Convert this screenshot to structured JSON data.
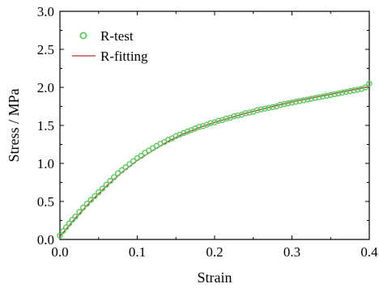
{
  "chart_data": {
    "type": "scatter",
    "xlabel": "Strain",
    "ylabel": "Stress / MPa",
    "xlim": [
      0.0,
      0.4
    ],
    "ylim": [
      0.0,
      3.0
    ],
    "x_ticks": [
      "0.0",
      "0.1",
      "0.2",
      "0.3",
      "0.4"
    ],
    "y_ticks": [
      "0.0",
      "0.5",
      "1.0",
      "1.5",
      "2.0",
      "2.5",
      "3.0"
    ],
    "x_tick_values": [
      0.0,
      0.1,
      0.2,
      0.3,
      0.4
    ],
    "y_tick_values": [
      0.0,
      0.5,
      1.0,
      1.5,
      2.0,
      2.5,
      3.0
    ],
    "legend_position": "top-left",
    "grid": false,
    "series": [
      {
        "name": "R-test",
        "kind": "markers",
        "color": "#5cc95c",
        "x": [
          0.0,
          0.004,
          0.008,
          0.012,
          0.016,
          0.02,
          0.025,
          0.03,
          0.035,
          0.04,
          0.045,
          0.05,
          0.055,
          0.06,
          0.065,
          0.07,
          0.075,
          0.08,
          0.085,
          0.09,
          0.095,
          0.1,
          0.105,
          0.11,
          0.115,
          0.12,
          0.125,
          0.13,
          0.135,
          0.14,
          0.145,
          0.15,
          0.155,
          0.16,
          0.165,
          0.17,
          0.175,
          0.18,
          0.185,
          0.19,
          0.195,
          0.2,
          0.205,
          0.21,
          0.215,
          0.22,
          0.225,
          0.23,
          0.235,
          0.24,
          0.245,
          0.25,
          0.255,
          0.26,
          0.265,
          0.27,
          0.275,
          0.28,
          0.285,
          0.29,
          0.295,
          0.3,
          0.305,
          0.31,
          0.315,
          0.32,
          0.325,
          0.33,
          0.335,
          0.34,
          0.345,
          0.35,
          0.355,
          0.36,
          0.365,
          0.37,
          0.375,
          0.38,
          0.385,
          0.39,
          0.395,
          0.4
        ],
        "y": [
          0.05,
          0.11,
          0.16,
          0.21,
          0.26,
          0.3,
          0.36,
          0.42,
          0.47,
          0.52,
          0.57,
          0.62,
          0.67,
          0.72,
          0.77,
          0.82,
          0.87,
          0.91,
          0.95,
          0.99,
          1.03,
          1.07,
          1.1,
          1.14,
          1.17,
          1.2,
          1.23,
          1.26,
          1.28,
          1.31,
          1.33,
          1.36,
          1.38,
          1.4,
          1.42,
          1.44,
          1.46,
          1.48,
          1.49,
          1.51,
          1.53,
          1.54,
          1.56,
          1.57,
          1.59,
          1.6,
          1.62,
          1.63,
          1.64,
          1.66,
          1.67,
          1.68,
          1.7,
          1.71,
          1.72,
          1.73,
          1.74,
          1.75,
          1.77,
          1.78,
          1.79,
          1.8,
          1.81,
          1.82,
          1.83,
          1.84,
          1.85,
          1.86,
          1.87,
          1.88,
          1.89,
          1.9,
          1.91,
          1.92,
          1.93,
          1.94,
          1.95,
          1.96,
          1.97,
          1.98,
          2.0,
          2.05
        ]
      },
      {
        "name": "R-fitting",
        "kind": "line",
        "color": "#b03030",
        "x": [
          0.0,
          0.02,
          0.04,
          0.06,
          0.08,
          0.1,
          0.12,
          0.14,
          0.16,
          0.18,
          0.2,
          0.22,
          0.24,
          0.26,
          0.28,
          0.3,
          0.32,
          0.34,
          0.36,
          0.38,
          0.4
        ],
        "y": [
          0.04,
          0.28,
          0.5,
          0.7,
          0.88,
          1.04,
          1.17,
          1.29,
          1.39,
          1.47,
          1.54,
          1.6,
          1.66,
          1.71,
          1.76,
          1.81,
          1.85,
          1.89,
          1.93,
          1.97,
          2.01
        ]
      }
    ]
  }
}
